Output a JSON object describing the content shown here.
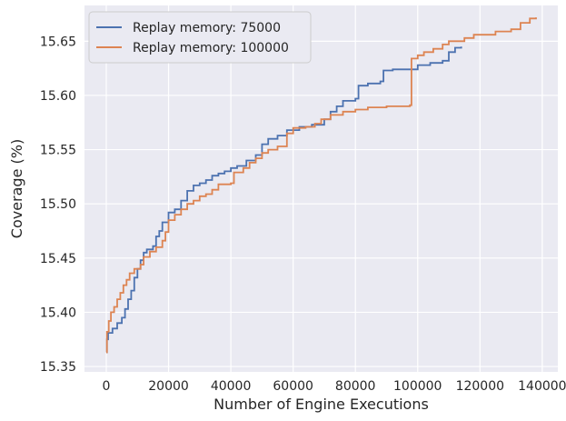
{
  "chart_data": {
    "type": "line",
    "title": "",
    "xlabel": "Number of Engine Executions",
    "ylabel": "Coverage (%)",
    "xlim": [
      -7000,
      145000
    ],
    "ylim": [
      15.345,
      15.683
    ],
    "x_ticks": [
      0,
      20000,
      40000,
      60000,
      80000,
      100000,
      120000,
      140000
    ],
    "y_ticks": [
      15.35,
      15.4,
      15.45,
      15.5,
      15.55,
      15.6,
      15.65
    ],
    "grid": true,
    "legend_position": "top-left",
    "background": "#eaeaf2",
    "series": [
      {
        "name": "Replay memory: 75000",
        "color": "#4c72b0",
        "points": [
          [
            0,
            15.363
          ],
          [
            200,
            15.375
          ],
          [
            600,
            15.381
          ],
          [
            2000,
            15.385
          ],
          [
            3500,
            15.39
          ],
          [
            5000,
            15.395
          ],
          [
            6000,
            15.403
          ],
          [
            7000,
            15.412
          ],
          [
            8000,
            15.42
          ],
          [
            9000,
            15.432
          ],
          [
            10000,
            15.44
          ],
          [
            11000,
            15.448
          ],
          [
            12000,
            15.455
          ],
          [
            13000,
            15.458
          ],
          [
            15000,
            15.461
          ],
          [
            16000,
            15.47
          ],
          [
            17000,
            15.475
          ],
          [
            18000,
            15.483
          ],
          [
            20000,
            15.492
          ],
          [
            22000,
            15.495
          ],
          [
            24000,
            15.503
          ],
          [
            26000,
            15.512
          ],
          [
            28000,
            15.517
          ],
          [
            30000,
            15.519
          ],
          [
            32000,
            15.522
          ],
          [
            34000,
            15.526
          ],
          [
            36000,
            15.528
          ],
          [
            38000,
            15.53
          ],
          [
            40000,
            15.533
          ],
          [
            42000,
            15.535
          ],
          [
            45000,
            15.54
          ],
          [
            48000,
            15.545
          ],
          [
            50000,
            15.555
          ],
          [
            52000,
            15.56
          ],
          [
            55000,
            15.563
          ],
          [
            58000,
            15.568
          ],
          [
            62000,
            15.571
          ],
          [
            66000,
            15.573
          ],
          [
            70000,
            15.578
          ],
          [
            72000,
            15.585
          ],
          [
            74000,
            15.59
          ],
          [
            76000,
            15.595
          ],
          [
            80000,
            15.597
          ],
          [
            81000,
            15.609
          ],
          [
            84000,
            15.611
          ],
          [
            88000,
            15.613
          ],
          [
            89000,
            15.623
          ],
          [
            92000,
            15.624
          ],
          [
            98000,
            15.624
          ],
          [
            100000,
            15.628
          ],
          [
            104000,
            15.63
          ],
          [
            108000,
            15.632
          ],
          [
            110000,
            15.64
          ],
          [
            112000,
            15.644
          ],
          [
            114000,
            15.645
          ]
        ]
      },
      {
        "name": "Replay memory: 100000",
        "color": "#dd8452",
        "points": [
          [
            0,
            15.363
          ],
          [
            200,
            15.382
          ],
          [
            800,
            15.392
          ],
          [
            1500,
            15.4
          ],
          [
            2500,
            15.405
          ],
          [
            3500,
            15.412
          ],
          [
            4500,
            15.418
          ],
          [
            5500,
            15.425
          ],
          [
            6500,
            15.43
          ],
          [
            7500,
            15.436
          ],
          [
            9000,
            15.44
          ],
          [
            11000,
            15.444
          ],
          [
            12000,
            15.451
          ],
          [
            14000,
            15.456
          ],
          [
            16000,
            15.46
          ],
          [
            18000,
            15.466
          ],
          [
            19000,
            15.474
          ],
          [
            20000,
            15.485
          ],
          [
            22000,
            15.49
          ],
          [
            24000,
            15.495
          ],
          [
            26000,
            15.5
          ],
          [
            28000,
            15.503
          ],
          [
            30000,
            15.507
          ],
          [
            32000,
            15.509
          ],
          [
            34000,
            15.513
          ],
          [
            36000,
            15.518
          ],
          [
            40000,
            15.519
          ],
          [
            41000,
            15.529
          ],
          [
            44000,
            15.533
          ],
          [
            46000,
            15.538
          ],
          [
            48000,
            15.542
          ],
          [
            50000,
            15.547
          ],
          [
            52000,
            15.55
          ],
          [
            55000,
            15.553
          ],
          [
            58000,
            15.565
          ],
          [
            60000,
            15.57
          ],
          [
            64000,
            15.571
          ],
          [
            67000,
            15.574
          ],
          [
            69000,
            15.578
          ],
          [
            72000,
            15.582
          ],
          [
            76000,
            15.585
          ],
          [
            80000,
            15.587
          ],
          [
            84000,
            15.589
          ],
          [
            90000,
            15.59
          ],
          [
            97500,
            15.591
          ],
          [
            98000,
            15.634
          ],
          [
            100000,
            15.637
          ],
          [
            102000,
            15.64
          ],
          [
            105000,
            15.643
          ],
          [
            108000,
            15.647
          ],
          [
            110000,
            15.65
          ],
          [
            115000,
            15.653
          ],
          [
            118000,
            15.656
          ],
          [
            125000,
            15.659
          ],
          [
            130000,
            15.661
          ],
          [
            133000,
            15.667
          ],
          [
            136000,
            15.671
          ],
          [
            138000,
            15.672
          ]
        ]
      }
    ]
  }
}
